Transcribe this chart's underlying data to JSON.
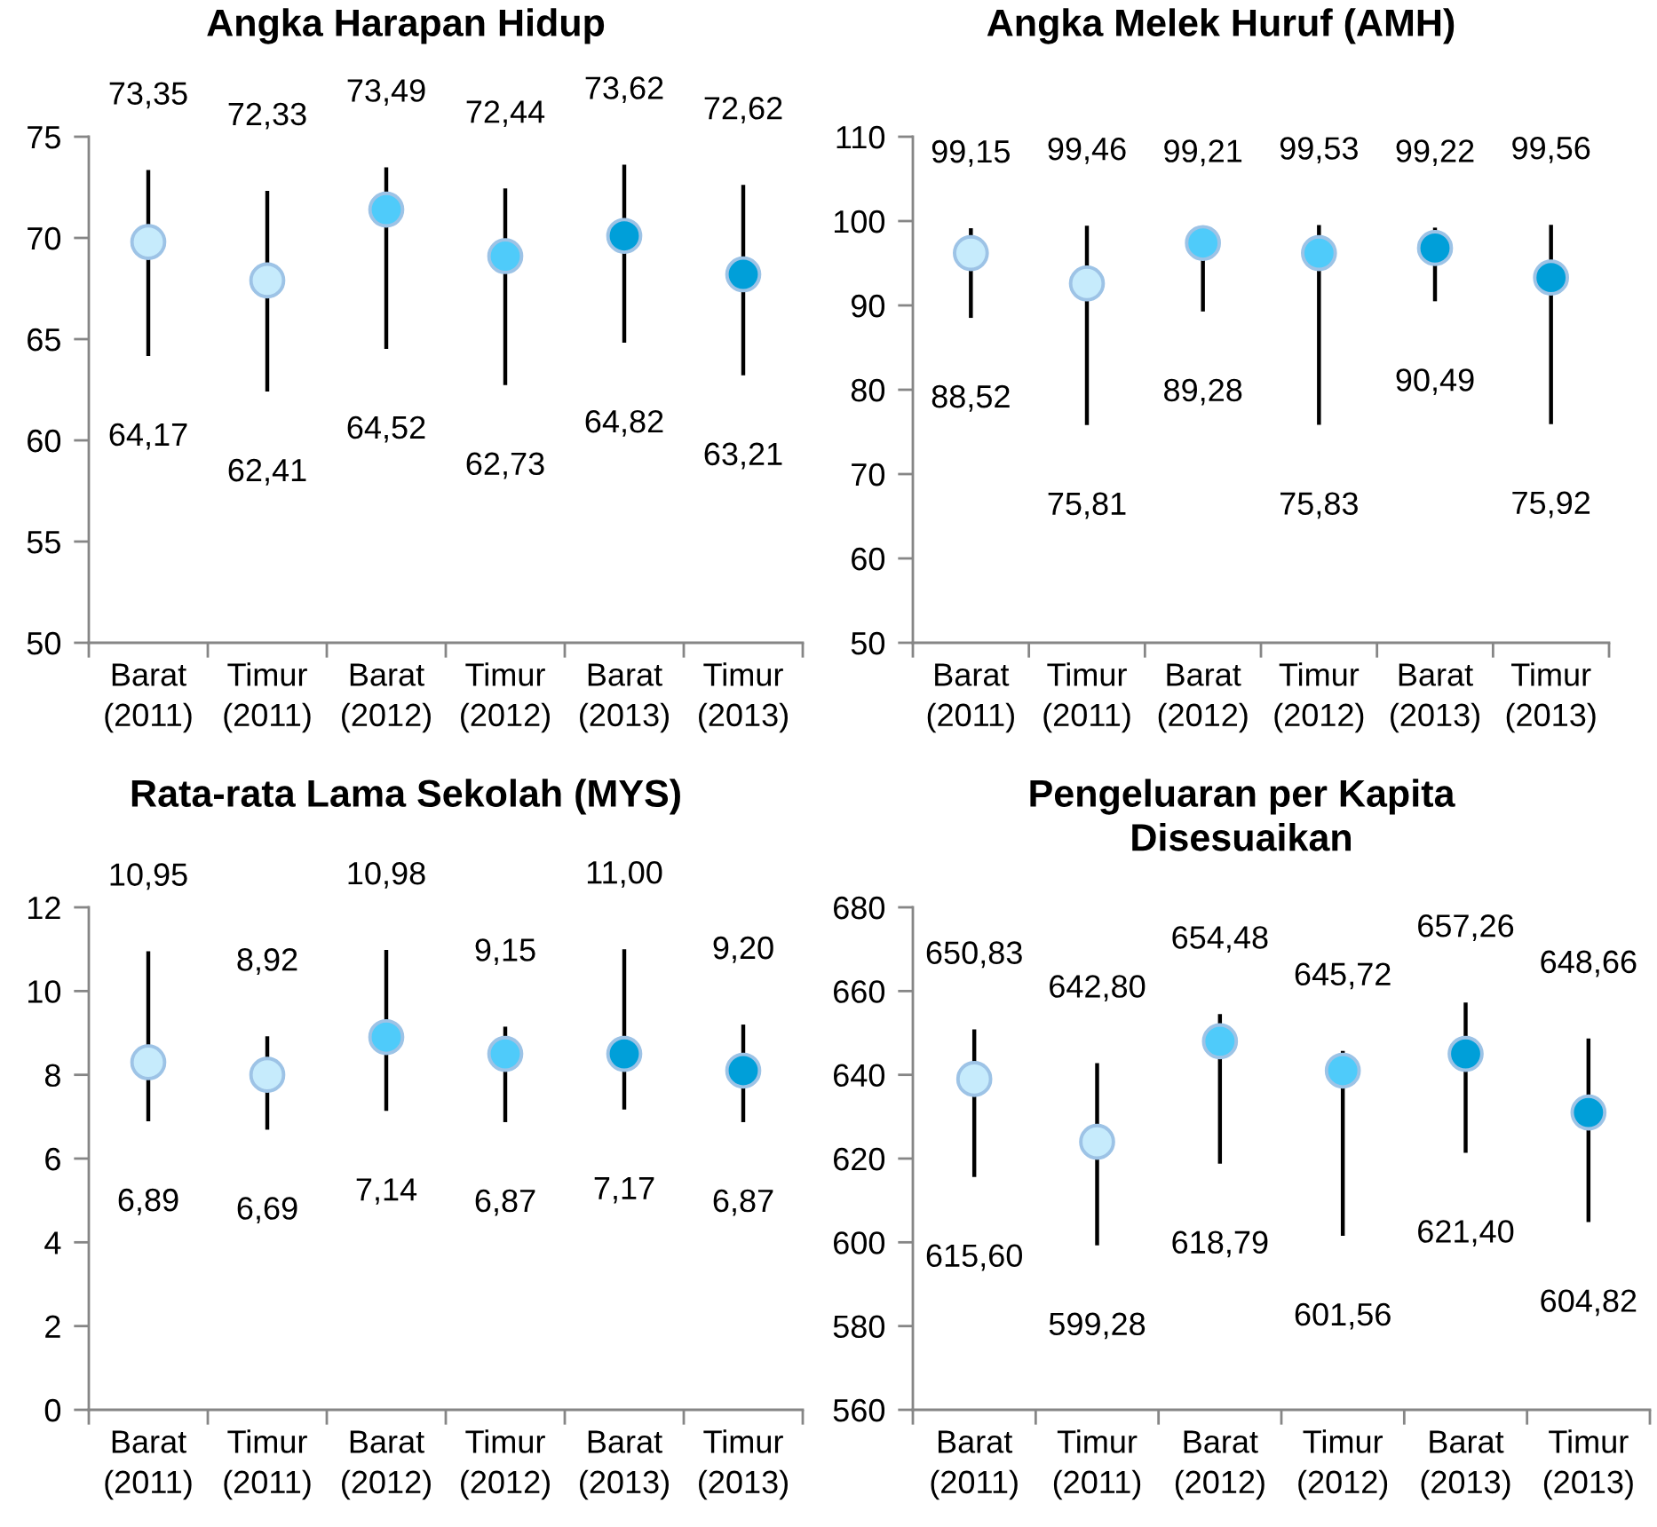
{
  "chart_data": [
    {
      "type": "scatter",
      "title": "Angka Harapan Hidup",
      "marker": "circle",
      "categories": [
        "Barat\n(2011)",
        "Timur\n(2011)",
        "Barat\n(2012)",
        "Timur\n(2012)",
        "Barat\n(2013)",
        "Timur\n(2013)"
      ],
      "values": [
        69.8,
        67.9,
        71.4,
        69.1,
        70.1,
        68.2
      ],
      "colors": [
        "#c6ebfc",
        "#c6ebfc",
        "#4fcbfa",
        "#4fcbfa",
        "#009fd9",
        "#009fd9"
      ],
      "errors": [
        [
          64.17,
          73.35
        ],
        [
          62.41,
          72.33
        ],
        [
          64.52,
          73.49
        ],
        [
          62.73,
          72.44
        ],
        [
          64.82,
          73.62
        ],
        [
          63.21,
          72.62
        ]
      ],
      "ylim": [
        50,
        75
      ],
      "yticks": [
        50,
        55,
        60,
        65,
        70,
        75
      ],
      "annotations": [
        {
          "text": "73,35",
          "x": "Barat\n(2011)",
          "y": 73.35
        },
        {
          "text": "64,17",
          "x": "Barat\n(2011)",
          "y": 64.17
        },
        {
          "text": "72,33",
          "x": "Timur\n(2011)",
          "y": 72.33
        },
        {
          "text": "62,41",
          "x": "Timur\n(2011)",
          "y": 62.41
        },
        {
          "text": "73,49",
          "x": "Barat\n(2012)",
          "y": 73.49
        },
        {
          "text": "64,52",
          "x": "Barat\n(2012)",
          "y": 64.52
        },
        {
          "text": "72,44",
          "x": "Timur\n(2012)",
          "y": 72.44
        },
        {
          "text": "62,73",
          "x": "Timur\n(2012)",
          "y": 62.73
        },
        {
          "text": "73,62",
          "x": "Barat\n(2013)",
          "y": 73.62
        },
        {
          "text": "64,82",
          "x": "Barat\n(2013)",
          "y": 64.82
        },
        {
          "text": "72,62",
          "x": "Timur\n(2013)",
          "y": 72.62
        },
        {
          "text": "63,21",
          "x": "Timur\n(2013)",
          "y": 63.21
        }
      ]
    },
    {
      "type": "scatter",
      "title": "Angka Melek Huruf (AMH)",
      "marker": "circle",
      "categories": [
        "Barat\n(2011)",
        "Timur\n(2011)",
        "Barat\n(2012)",
        "Timur\n(2012)",
        "Barat\n(2013)",
        "Timur\n(2013)"
      ],
      "values": [
        96.2,
        92.6,
        97.4,
        96.2,
        96.8,
        93.3
      ],
      "colors": [
        "#c6ebfc",
        "#c6ebfc",
        "#4fcbfa",
        "#4fcbfa",
        "#009fd9",
        "#009fd9"
      ],
      "errors": [
        [
          88.52,
          99.15
        ],
        [
          75.81,
          99.46
        ],
        [
          89.28,
          99.21
        ],
        [
          75.83,
          99.53
        ],
        [
          90.49,
          99.22
        ],
        [
          75.92,
          99.56
        ]
      ],
      "ylim": [
        50,
        110
      ],
      "yticks": [
        50,
        60,
        70,
        80,
        90,
        100,
        110
      ],
      "annotations": [
        {
          "text": "99,15",
          "x": "Barat\n(2011)",
          "y": 99.15
        },
        {
          "text": "88,52",
          "x": "Barat\n(2011)",
          "y": 88.52
        },
        {
          "text": "99,46",
          "x": "Timur\n(2011)",
          "y": 99.46
        },
        {
          "text": "75,81",
          "x": "Timur\n(2011)",
          "y": 75.81
        },
        {
          "text": "99,21",
          "x": "Barat\n(2012)",
          "y": 99.21
        },
        {
          "text": "89,28",
          "x": "Barat\n(2012)",
          "y": 89.28
        },
        {
          "text": "99,53",
          "x": "Timur\n(2012)",
          "y": 99.53
        },
        {
          "text": "75,83",
          "x": "Timur\n(2012)",
          "y": 75.83
        },
        {
          "text": "99,22",
          "x": "Barat\n(2013)",
          "y": 99.22
        },
        {
          "text": "90,49",
          "x": "Barat\n(2013)",
          "y": 90.49
        },
        {
          "text": "99,56",
          "x": "Timur\n(2013)",
          "y": 99.56
        },
        {
          "text": "75,92",
          "x": "Timur\n(2013)",
          "y": 75.92
        }
      ]
    },
    {
      "type": "scatter",
      "title": "Rata-rata Lama Sekolah (MYS)",
      "marker": "circle",
      "categories": [
        "Barat\n(2011)",
        "Timur\n(2011)",
        "Barat\n(2012)",
        "Timur\n(2012)",
        "Barat\n(2013)",
        "Timur\n(2013)"
      ],
      "values": [
        8.3,
        8.0,
        8.9,
        8.5,
        8.5,
        8.1
      ],
      "colors": [
        "#c6ebfc",
        "#c6ebfc",
        "#4fcbfa",
        "#4fcbfa",
        "#009fd9",
        "#009fd9"
      ],
      "errors": [
        [
          6.89,
          10.95
        ],
        [
          6.69,
          8.92
        ],
        [
          7.14,
          10.98
        ],
        [
          6.87,
          9.15
        ],
        [
          7.17,
          11.0
        ],
        [
          6.87,
          9.2
        ]
      ],
      "ylim": [
        0,
        12
      ],
      "yticks": [
        0,
        2,
        4,
        6,
        8,
        10,
        12
      ],
      "annotations": [
        {
          "text": "10,95",
          "x": "Barat\n(2011)",
          "y": 10.95
        },
        {
          "text": "6,89",
          "x": "Barat\n(2011)",
          "y": 6.89
        },
        {
          "text": "8,92",
          "x": "Timur\n(2011)",
          "y": 8.92
        },
        {
          "text": "6,69",
          "x": "Timur\n(2011)",
          "y": 6.69
        },
        {
          "text": "10,98",
          "x": "Barat\n(2012)",
          "y": 10.98
        },
        {
          "text": "7,14",
          "x": "Barat\n(2012)",
          "y": 7.14
        },
        {
          "text": "9,15",
          "x": "Timur\n(2012)",
          "y": 9.15
        },
        {
          "text": "6,87",
          "x": "Timur\n(2012)",
          "y": 6.87
        },
        {
          "text": "11,00",
          "x": "Barat\n(2013)",
          "y": 11.0
        },
        {
          "text": "7,17",
          "x": "Barat\n(2013)",
          "y": 7.17
        },
        {
          "text": "9,20",
          "x": "Timur\n(2013)",
          "y": 9.2
        },
        {
          "text": "6,87",
          "x": "Timur\n(2013)",
          "y": 6.87
        }
      ]
    },
    {
      "type": "scatter",
      "title": "Pengeluaran per Kapita\nDisesuaikan",
      "marker": "circle",
      "categories": [
        "Barat\n(2011)",
        "Timur\n(2011)",
        "Barat\n(2012)",
        "Timur\n(2012)",
        "Barat\n(2013)",
        "Timur\n(2013)"
      ],
      "values": [
        639,
        624,
        648,
        641,
        645,
        631
      ],
      "colors": [
        "#c6ebfc",
        "#c6ebfc",
        "#4fcbfa",
        "#4fcbfa",
        "#009fd9",
        "#009fd9"
      ],
      "errors": [
        [
          615.6,
          650.83
        ],
        [
          599.28,
          642.8
        ],
        [
          618.79,
          654.48
        ],
        [
          601.56,
          645.72
        ],
        [
          621.4,
          657.26
        ],
        [
          604.82,
          648.66
        ]
      ],
      "ylim": [
        560,
        680
      ],
      "yticks": [
        560,
        580,
        600,
        620,
        640,
        660,
        680
      ],
      "annotations": [
        {
          "text": "650,83",
          "x": "Barat\n(2011)",
          "y": 650.83
        },
        {
          "text": "615,60",
          "x": "Barat\n(2011)",
          "y": 615.6
        },
        {
          "text": "642,80",
          "x": "Timur\n(2011)",
          "y": 642.8
        },
        {
          "text": "599,28",
          "x": "Timur\n(2011)",
          "y": 599.28
        },
        {
          "text": "654,48",
          "x": "Barat\n(2012)",
          "y": 654.48
        },
        {
          "text": "618,79",
          "x": "Barat\n(2012)",
          "y": 618.79
        },
        {
          "text": "645,72",
          "x": "Timur\n(2012)",
          "y": 645.72
        },
        {
          "text": "601,56",
          "x": "Timur\n(2012)",
          "y": 601.56
        },
        {
          "text": "657,26",
          "x": "Barat\n(2013)",
          "y": 657.26
        },
        {
          "text": "621,40",
          "x": "Barat\n(2013)",
          "y": 621.4
        },
        {
          "text": "648,66",
          "x": "Timur\n(2013)",
          "y": 648.66
        },
        {
          "text": "604,82",
          "x": "Timur\n(2013)",
          "y": 604.82
        }
      ]
    }
  ]
}
